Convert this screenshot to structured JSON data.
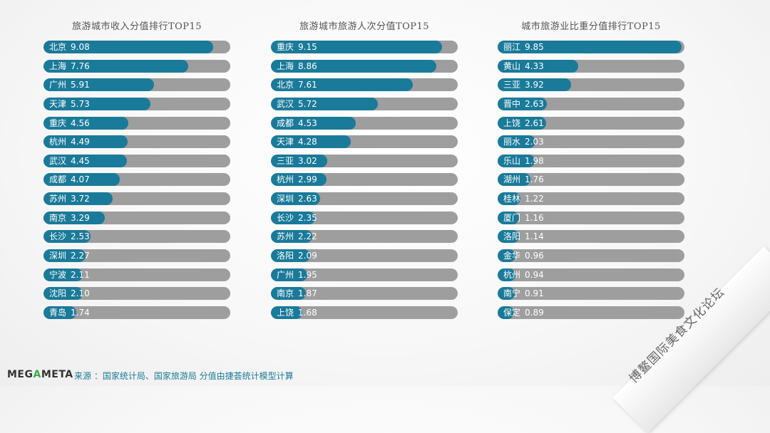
{
  "chart_data": [
    {
      "type": "bar",
      "orientation": "horizontal",
      "title": "旅游城市收入分值排行TOP15",
      "categories": [
        "北京",
        "上海",
        "广州",
        "天津",
        "重庆",
        "杭州",
        "武汉",
        "成都",
        "苏州",
        "南京",
        "长沙",
        "深圳",
        "宁波",
        "沈阳",
        "青岛"
      ],
      "values": [
        9.08,
        7.76,
        5.91,
        5.73,
        4.56,
        4.49,
        4.45,
        4.07,
        3.72,
        3.29,
        2.53,
        2.27,
        2.11,
        2.1,
        1.74
      ],
      "value_labels": [
        "9.08",
        "7.76",
        "5.91",
        "5.73",
        "4.56",
        "4.49",
        "4.45",
        "4.07",
        "3.72",
        "3.29",
        "2.53",
        "2.27",
        "2.11",
        "2.10",
        "1.74"
      ],
      "xlim": [
        0,
        10
      ]
    },
    {
      "type": "bar",
      "orientation": "horizontal",
      "title": "旅游城市旅游人次分值TOP15",
      "categories": [
        "重庆",
        "上海",
        "北京",
        "武汉",
        "成都",
        "天津",
        "三亚",
        "杭州",
        "深圳",
        "长沙",
        "苏州",
        "洛阳",
        "广州",
        "南京",
        "上饶"
      ],
      "values": [
        9.15,
        8.86,
        7.61,
        5.72,
        4.53,
        4.28,
        3.02,
        2.99,
        2.63,
        2.35,
        2.22,
        2.09,
        1.95,
        1.87,
        1.68
      ],
      "value_labels": [
        "9.15",
        "8.86",
        "7.61",
        "5.72",
        "4.53",
        "4.28",
        "3.02",
        "2.99",
        "2.63",
        "2.35",
        "2.22",
        "2.09",
        "1.95",
        "1.87",
        "1.68"
      ],
      "xlim": [
        0,
        10
      ]
    },
    {
      "type": "bar",
      "orientation": "horizontal",
      "title": "城市旅游业比重分值排行TOP15",
      "categories": [
        "丽江",
        "黄山",
        "三亚",
        "晋中",
        "上饶",
        "丽水",
        "乐山",
        "湖州",
        "桂林",
        "厦门",
        "洛阳",
        "金华",
        "杭州",
        "南宁",
        "保定"
      ],
      "values": [
        9.85,
        4.33,
        3.92,
        2.63,
        2.61,
        2.03,
        1.98,
        1.76,
        1.22,
        1.16,
        1.14,
        0.96,
        0.94,
        0.91,
        0.89
      ],
      "value_labels": [
        "9.85",
        "4.33",
        "3.92",
        "2.63",
        "2.61",
        "2.03",
        "1.98",
        "1.76",
        "1.22",
        "1.16",
        "1.14",
        "0.96",
        "0.94",
        "0.91",
        "0.89"
      ],
      "xlim": [
        0,
        10
      ]
    }
  ],
  "footer": {
    "logo_left": "MEG",
    "logo_mid": "A",
    "logo_right": "META",
    "source": "来源 ：国家统计局、国家旅游局 分值由捷荟统计模型计算"
  },
  "watermark": "博鳌国际美食文化论坛",
  "colors": {
    "bar_fill": "#1a7a99",
    "bar_track": "#9e9e9e",
    "source_text": "#1a7a99",
    "logo_accent": "#3aa84a"
  }
}
